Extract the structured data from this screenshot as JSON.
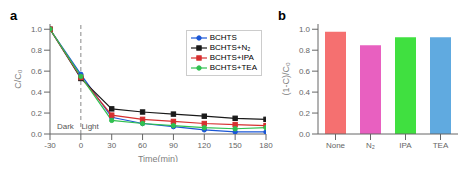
{
  "chart_data": [
    {
      "type": "line",
      "panel_label": "a",
      "x_label": "Time(min)",
      "y_label": "C/C₀",
      "x": [
        -30,
        0,
        30,
        60,
        90,
        120,
        150,
        180
      ],
      "series": [
        {
          "name": "BCHTS",
          "color": "#1a56d6",
          "marker": "circle",
          "values": [
            1.0,
            0.57,
            0.16,
            0.1,
            0.07,
            0.04,
            0.02,
            0.02
          ]
        },
        {
          "name": "BCHTS+N₂",
          "color": "#1a1a1a",
          "marker": "square",
          "values": [
            1.0,
            0.53,
            0.24,
            0.21,
            0.19,
            0.17,
            0.15,
            0.14
          ]
        },
        {
          "name": "BCHTS+IPA",
          "color": "#d63030",
          "marker": "square",
          "values": [
            1.0,
            0.54,
            0.18,
            0.14,
            0.12,
            0.1,
            0.09,
            0.08
          ]
        },
        {
          "name": "BCHTS+TEA",
          "color": "#30c050",
          "marker": "circle",
          "values": [
            1.0,
            0.55,
            0.13,
            0.1,
            0.08,
            0.06,
            0.05,
            0.06
          ]
        }
      ],
      "xlim": [
        -30,
        180
      ],
      "xticks": [
        -30,
        0,
        30,
        60,
        90,
        120,
        150,
        180
      ],
      "ylim": [
        0.0,
        1.05
      ],
      "yticks": [
        {
          "value": 0,
          "label": "0.0"
        },
        0.2,
        0.4,
        0.6,
        0.8,
        {
          "value": 1,
          "label": "1.0"
        }
      ],
      "vlines": [
        0
      ],
      "annotations": [
        {
          "text": "Dark",
          "x": -15
        },
        {
          "text": "Light",
          "x": 9
        }
      ],
      "legend": "upper right",
      "grid": false
    },
    {
      "type": "bar",
      "panel_label": "b",
      "y_label": "(1-C)/C₀",
      "categories": [
        "None",
        "N₂",
        "IPA",
        "TEA"
      ],
      "values": [
        0.975,
        0.848,
        0.924,
        0.924
      ],
      "colors": [
        "#f57070",
        "#e860c0",
        "#40e040",
        "#60aae0"
      ],
      "ylim": [
        0.0,
        1.05
      ],
      "yticks": [
        {
          "value": 0,
          "label": "0.0"
        },
        0.2,
        0.4,
        0.6,
        0.8,
        {
          "value": 1,
          "label": "1.0"
        }
      ],
      "grid": false
    }
  ]
}
